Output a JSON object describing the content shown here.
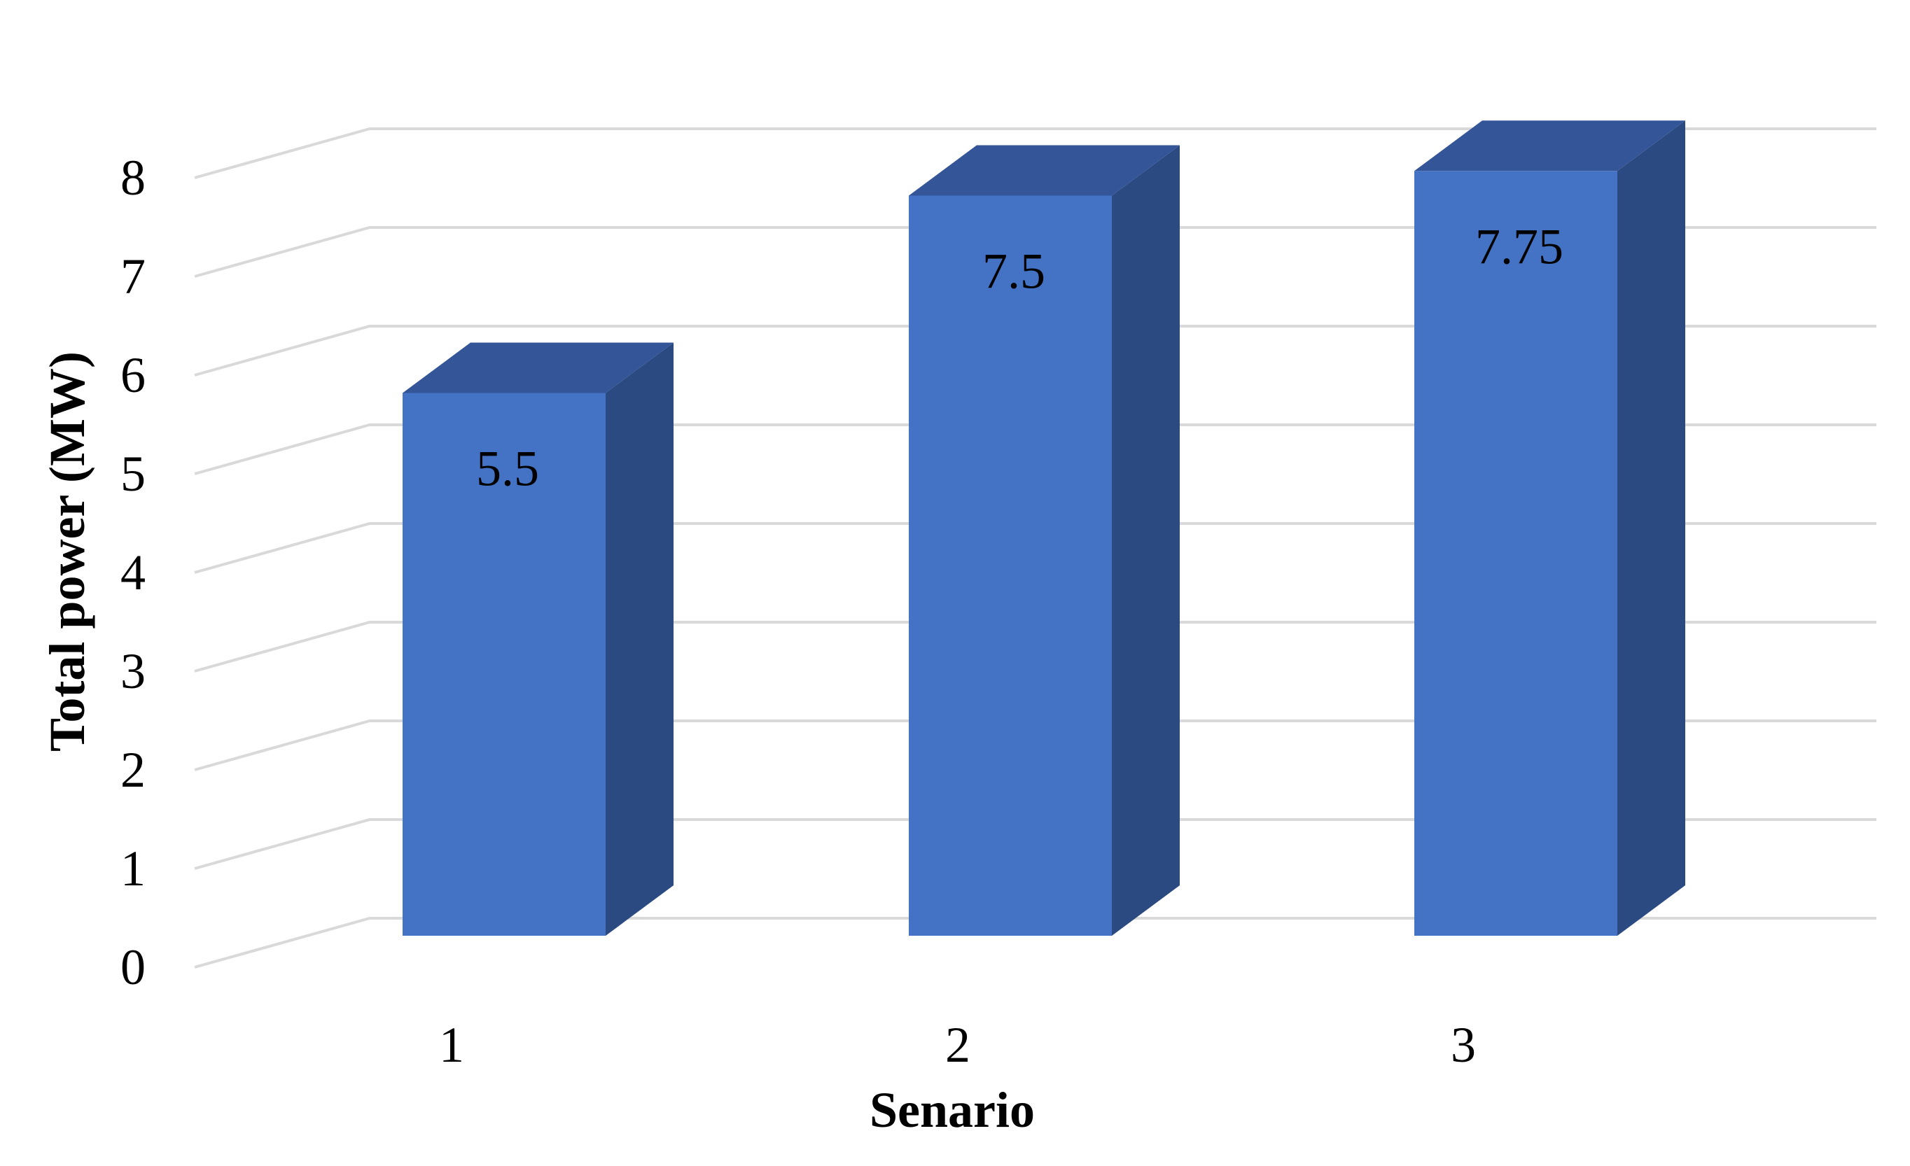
{
  "chart_data": {
    "type": "bar",
    "categories": [
      "1",
      "2",
      "3"
    ],
    "values": [
      5.5,
      7.5,
      7.75
    ],
    "data_labels": [
      "5.5",
      "7.5",
      "7.75"
    ],
    "title": "",
    "xlabel": "Senario",
    "ylabel": "Total power (MW)",
    "ylim": [
      0,
      8
    ],
    "yticks": [
      "0",
      "1",
      "2",
      "3",
      "4",
      "5",
      "6",
      "7",
      "8"
    ],
    "grid": true,
    "legend": "none",
    "style": "3d-column",
    "colors": {
      "bar_front": "#4472c4",
      "bar_top": "#345597",
      "bar_side": "#2c4a82",
      "gridline": "#d9d9d9"
    }
  }
}
